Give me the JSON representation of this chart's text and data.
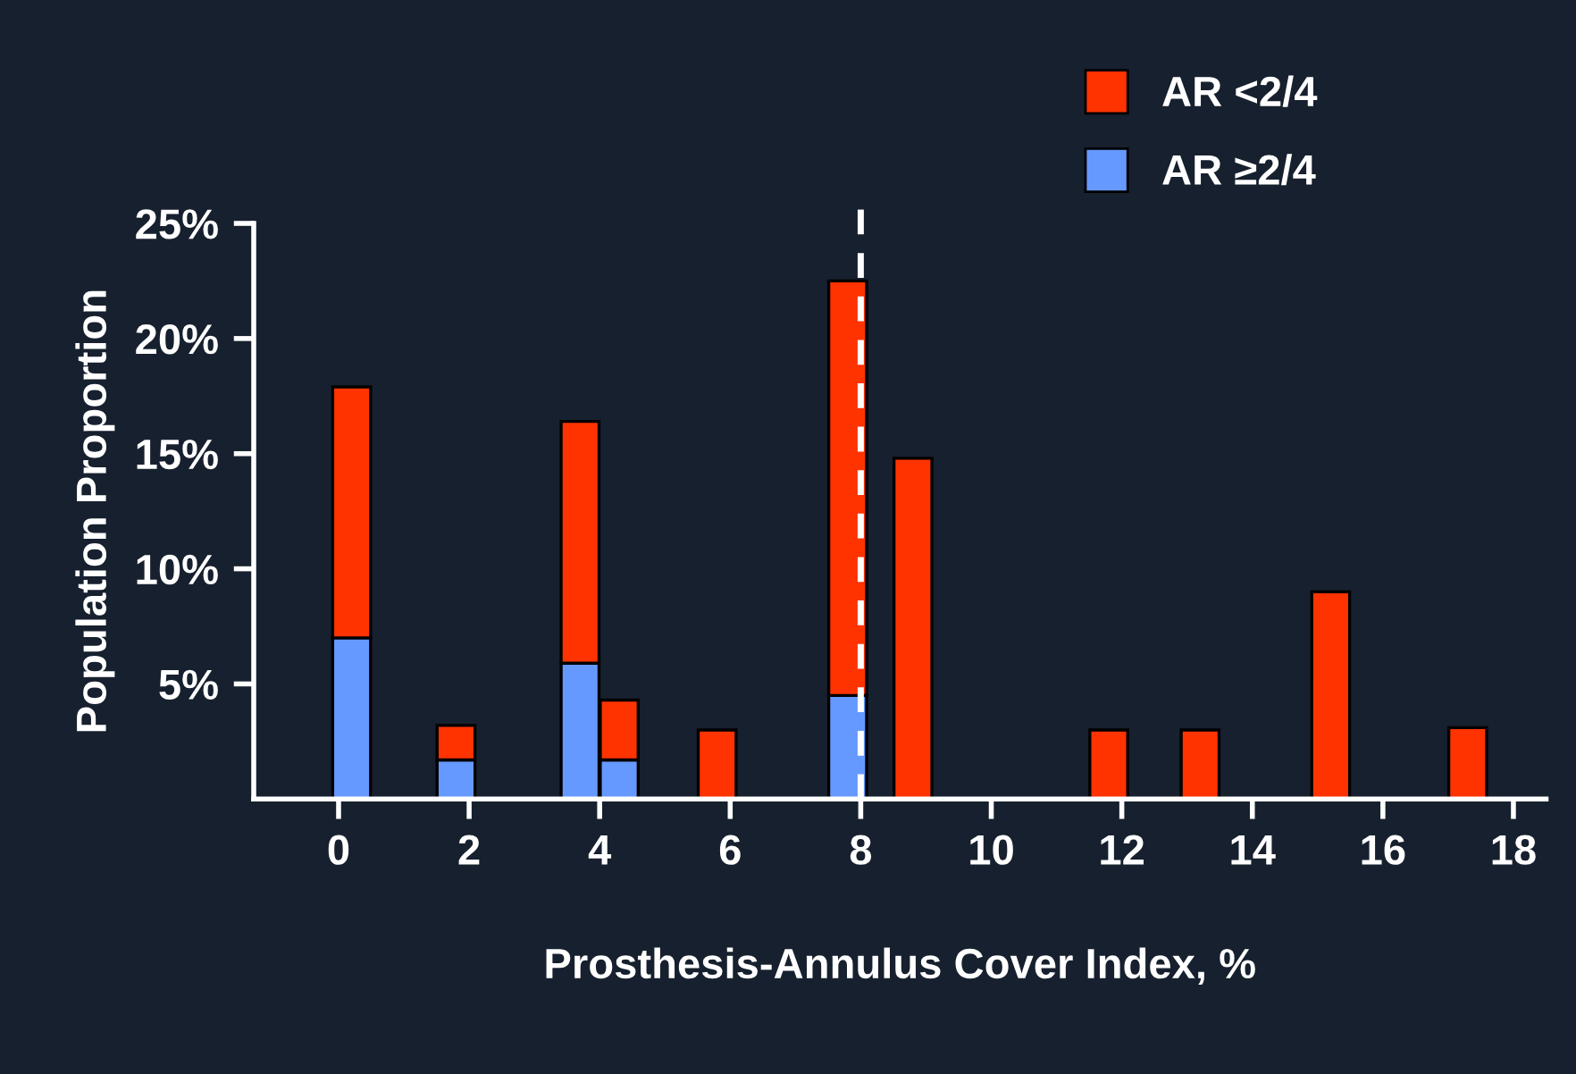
{
  "chart_data": {
    "type": "bar",
    "stacked": true,
    "xlabel": "Prosthesis-Annulus Cover Index, %",
    "ylabel": "Population Proportion",
    "x": [
      0.2,
      1.8,
      3.7,
      4.3,
      5.8,
      7.8,
      8.8,
      11.8,
      13.2,
      15.2,
      17.3
    ],
    "series": [
      {
        "name": "AR ≥2/4",
        "color": "#6699ff",
        "values": [
          7.0,
          1.7,
          5.9,
          1.7,
          null,
          4.5,
          null,
          null,
          null,
          null,
          null
        ]
      },
      {
        "name": "AR <2/4",
        "color": "#ff3300",
        "values": [
          10.9,
          1.5,
          10.5,
          2.6,
          3.0,
          18.0,
          14.8,
          3.0,
          3.0,
          9.0,
          3.1
        ]
      }
    ],
    "xlim": [
      -1.3,
      18.5
    ],
    "xticks": [
      0,
      2,
      4,
      6,
      8,
      10,
      12,
      14,
      16,
      18
    ],
    "ylim": [
      0,
      25
    ],
    "yticks": [
      {
        "value": 5,
        "label": "5%"
      },
      {
        "value": 10,
        "label": "10%"
      },
      {
        "value": 15,
        "label": "15%"
      },
      {
        "value": 20,
        "label": "20%"
      },
      {
        "value": 25,
        "label": "25%"
      }
    ],
    "ref_lines": [
      {
        "axis": "x",
        "value": 8,
        "label": null,
        "color": "#ffffff",
        "line_style": "dashed"
      }
    ],
    "grid": false,
    "legend": "top right"
  }
}
